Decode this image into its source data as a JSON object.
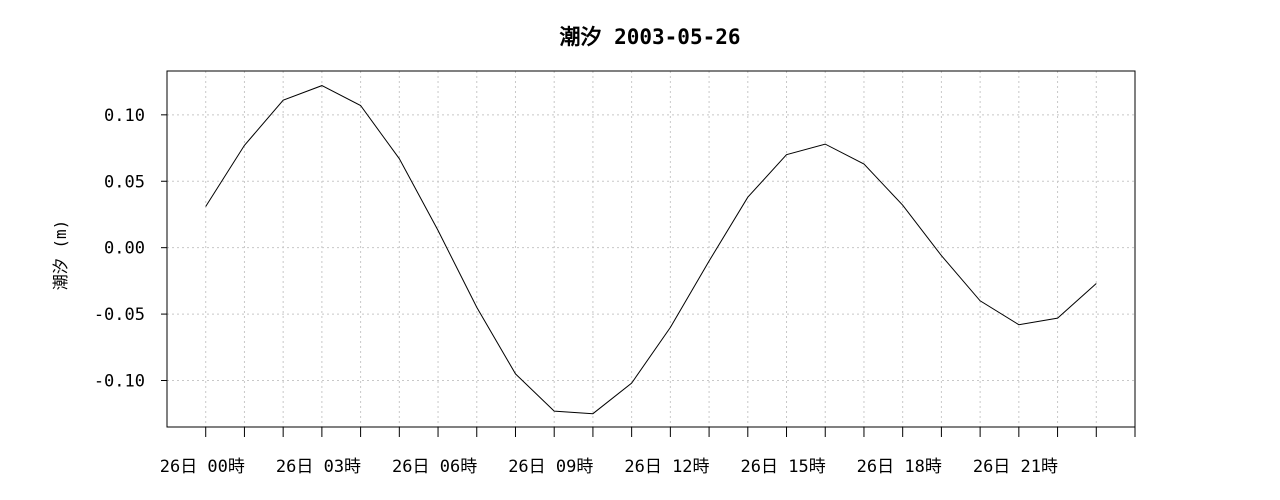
{
  "chart_data": {
    "type": "line",
    "title": "潮汐 2003-05-26",
    "ylabel": "潮汐 (m)",
    "xlabel": "",
    "ylim": [
      -0.135,
      0.133
    ],
    "yticks": [
      0.1,
      0.05,
      0.0,
      -0.05,
      -0.1
    ],
    "ytick_labels": [
      "0.10",
      "0.05",
      "0.00",
      "-0.05",
      "-0.10"
    ],
    "x_hours": [
      0,
      1,
      2,
      3,
      4,
      5,
      6,
      7,
      8,
      9,
      10,
      11,
      12,
      13,
      14,
      15,
      16,
      17,
      18,
      19,
      20,
      21,
      22,
      23
    ],
    "xlim_hours": [
      -1,
      24
    ],
    "xtick_labels": [
      {
        "hour": 0,
        "label": "26日 00時"
      },
      {
        "hour": 3,
        "label": "26日 03時"
      },
      {
        "hour": 6,
        "label": "26日 06時"
      },
      {
        "hour": 9,
        "label": "26日 09時"
      },
      {
        "hour": 12,
        "label": "26日 12時"
      },
      {
        "hour": 15,
        "label": "26日 15時"
      },
      {
        "hour": 18,
        "label": "26日 18時"
      },
      {
        "hour": 21,
        "label": "26日 21時"
      }
    ],
    "series": [
      {
        "values": [
          0.031,
          0.077,
          0.111,
          0.122,
          0.107,
          0.067,
          0.013,
          -0.045,
          -0.095,
          -0.123,
          -0.125,
          -0.102,
          -0.06,
          -0.01,
          0.038,
          0.07,
          0.078,
          0.063,
          0.032,
          -0.006,
          -0.04,
          -0.058,
          -0.053,
          -0.027
        ]
      }
    ],
    "grid": true,
    "legend": "none"
  }
}
